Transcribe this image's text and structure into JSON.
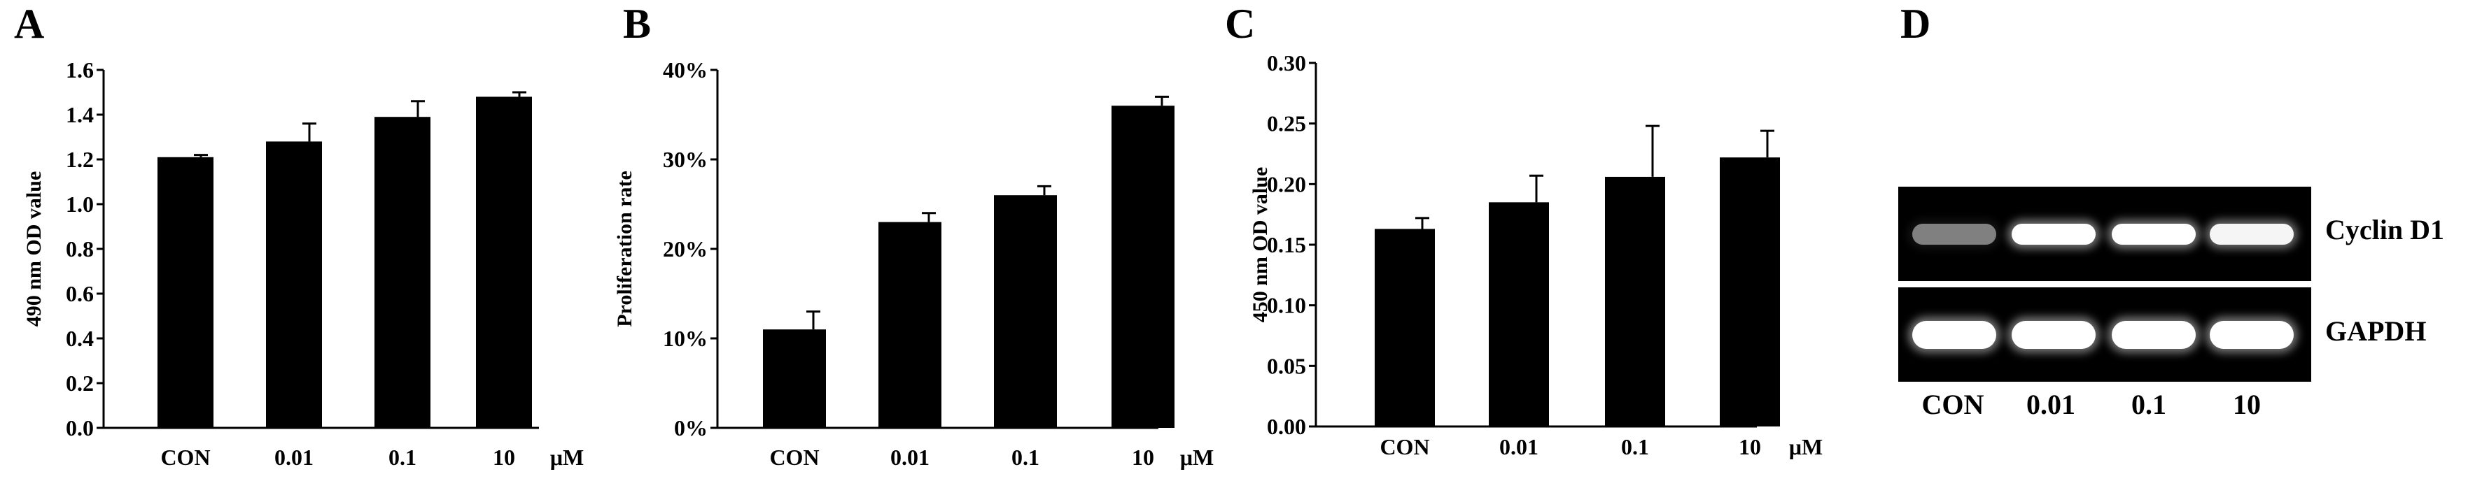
{
  "panel_labels": [
    "A",
    "B",
    "C",
    "D"
  ],
  "chart_data": [
    {
      "type": "bar",
      "categories": [
        "CON",
        "0.01",
        "0.1",
        "10"
      ],
      "unit": "μM",
      "values": [
        1.21,
        1.28,
        1.39,
        1.48
      ],
      "errors": [
        0.01,
        0.08,
        0.07,
        0.02
      ],
      "ylabel": "490 nm OD value",
      "ylim": [
        0,
        1.6
      ],
      "yticks": [
        0.0,
        0.2,
        0.4,
        0.6,
        0.8,
        1.0,
        1.2,
        1.4,
        1.6
      ],
      "ytick_labels": [
        "0.0",
        "0.2",
        "0.4",
        "0.6",
        "0.8",
        "1.0",
        "1.2",
        "1.4",
        "1.6"
      ],
      "grid": false
    },
    {
      "type": "bar",
      "categories": [
        "CON",
        "0.01",
        "0.1",
        "10"
      ],
      "unit": "μM",
      "values": [
        11,
        23,
        26,
        36
      ],
      "errors": [
        2,
        1,
        1,
        1
      ],
      "ylabel": "Proliferation rate",
      "ylim": [
        0,
        40
      ],
      "yticks": [
        0,
        10,
        20,
        30,
        40
      ],
      "ytick_labels": [
        "0%",
        "10%",
        "20%",
        "30%",
        "40%"
      ],
      "grid": false
    },
    {
      "type": "bar",
      "categories": [
        "CON",
        "0.01",
        "0.1",
        "10"
      ],
      "unit": "μM",
      "values": [
        0.163,
        0.185,
        0.206,
        0.222
      ],
      "errors": [
        0.009,
        0.022,
        0.042,
        0.022
      ],
      "ylabel": "450 nm OD value",
      "ylim": [
        0,
        0.3
      ],
      "yticks": [
        0.0,
        0.05,
        0.1,
        0.15,
        0.2,
        0.25,
        0.3
      ],
      "ytick_labels": [
        "0.00",
        "0.05",
        "0.10",
        "0.15",
        "0.20",
        "0.25",
        "0.30"
      ],
      "grid": false
    }
  ],
  "gel": {
    "rows": [
      "Cyclin D1",
      "GAPDH"
    ],
    "lanes": [
      "CON",
      "0.01",
      "0.1",
      "10"
    ],
    "band_intensity": {
      "Cyclin D1": [
        0.35,
        1.0,
        1.0,
        0.95
      ],
      "GAPDH": [
        1.0,
        1.0,
        1.0,
        1.0
      ]
    }
  }
}
